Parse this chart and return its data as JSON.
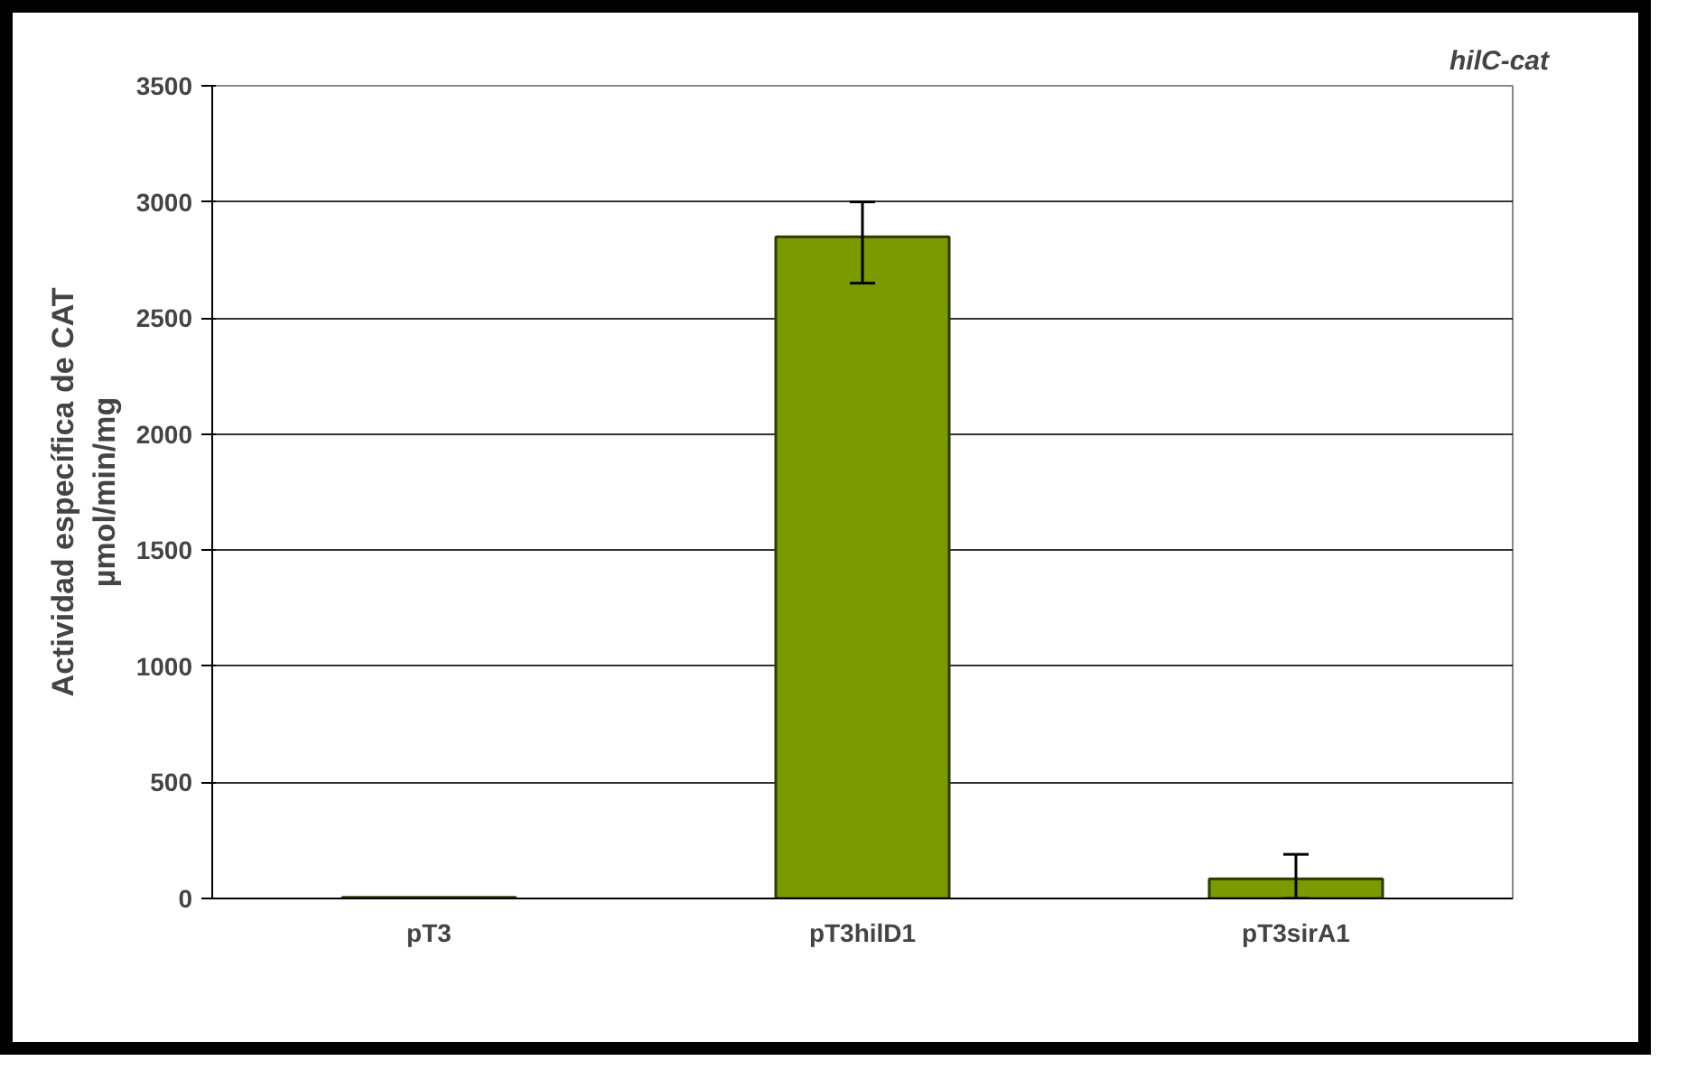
{
  "chart_data": {
    "type": "bar",
    "categories": [
      "pT3",
      "pT3hilD1",
      "pT3sirA1"
    ],
    "values": [
      5,
      2850,
      85
    ],
    "errors": [
      null,
      [
        2650,
        3000
      ],
      [
        0,
        190
      ]
    ],
    "color": "#7a9a00",
    "ylabel": "Actividad específica de CAT\nµmol/min/mg",
    "annotations": [
      "hilC-cat"
    ],
    "ylim": [
      0,
      3500
    ],
    "yticks": [
      0,
      500,
      1000,
      1500,
      2000,
      2500,
      3000,
      3500
    ],
    "grid": "y"
  }
}
